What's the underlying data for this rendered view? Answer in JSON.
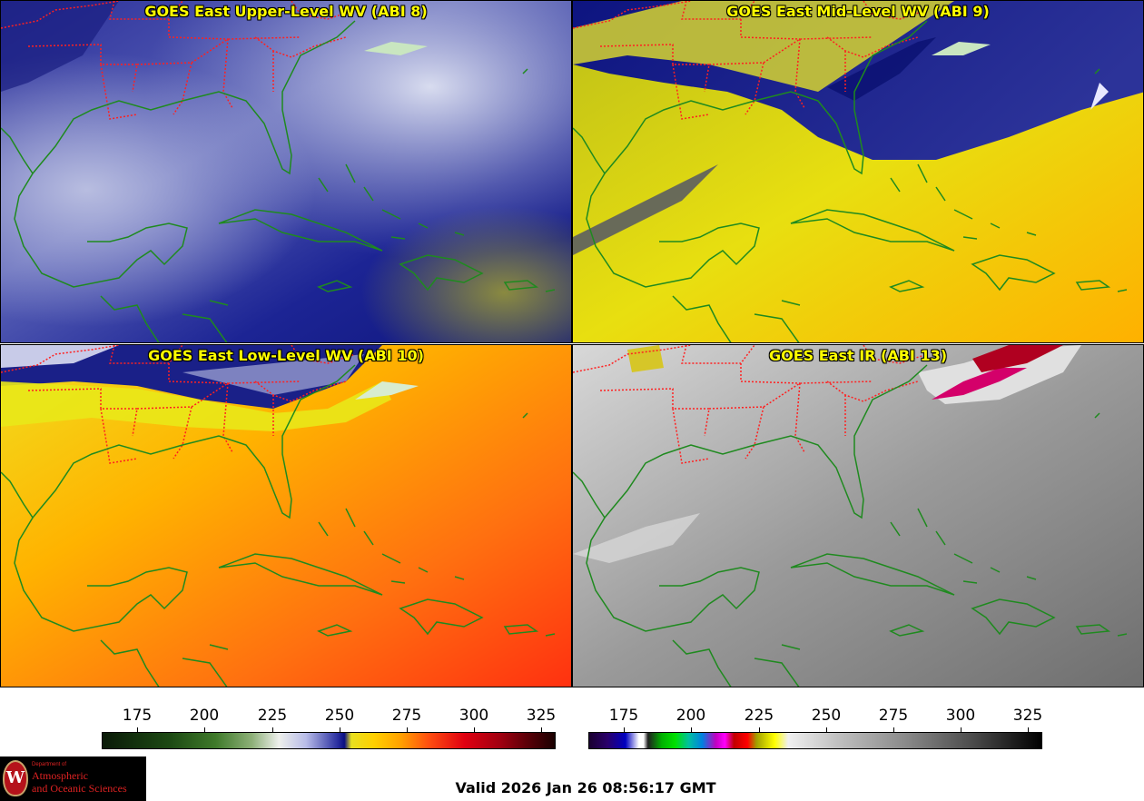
{
  "panels": [
    {
      "title": "GOES East Upper-Level WV (ABI 8)"
    },
    {
      "title": "GOES East Mid-Level WV (ABI 9)"
    },
    {
      "title": "GOES East Low-Level WV (ABI 10)"
    },
    {
      "title": "GOES East IR (ABI 13)"
    }
  ],
  "wv_scale": {
    "ticks": [
      "175",
      "200",
      "225",
      "250",
      "275",
      "300",
      "325"
    ]
  },
  "ir_scale": {
    "ticks": [
      "175",
      "200",
      "225",
      "250",
      "275",
      "300",
      "325"
    ]
  },
  "logo": {
    "seal_letter": "W",
    "dept": "Department of",
    "line1": "Atmospheric",
    "line2": "and Oceanic Sciences"
  },
  "valid_time": "Valid 2026 Jan 26 08:56:17 GMT",
  "colors": {
    "state_borders": "#ff2020",
    "coastlines": "#1f8a1f",
    "title_text": "#ffff00"
  }
}
